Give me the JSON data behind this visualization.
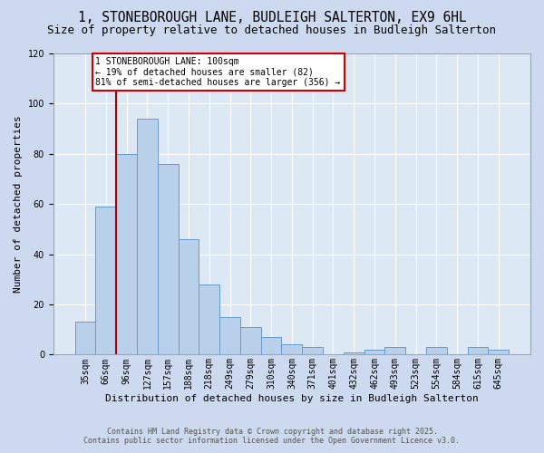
{
  "title": "1, STONEBOROUGH LANE, BUDLEIGH SALTERTON, EX9 6HL",
  "subtitle": "Size of property relative to detached houses in Budleigh Salterton",
  "xlabel": "Distribution of detached houses by size in Budleigh Salterton",
  "ylabel": "Number of detached properties",
  "categories": [
    "35sqm",
    "66sqm",
    "96sqm",
    "127sqm",
    "157sqm",
    "188sqm",
    "218sqm",
    "249sqm",
    "279sqm",
    "310sqm",
    "340sqm",
    "371sqm",
    "401sqm",
    "432sqm",
    "462sqm",
    "493sqm",
    "523sqm",
    "554sqm",
    "584sqm",
    "615sqm",
    "645sqm"
  ],
  "values": [
    13,
    59,
    80,
    94,
    76,
    46,
    28,
    15,
    11,
    7,
    4,
    3,
    0,
    1,
    2,
    3,
    0,
    3,
    0,
    3,
    2
  ],
  "bar_color": "#b8d0ea",
  "bar_edge_color": "#6699cc",
  "bg_color": "#dde8f5",
  "grid_color": "#ffffff",
  "vline_x_idx": 2,
  "vline_color": "#aa0000",
  "ann_line1": "1 STONEBOROUGH LANE: 100sqm",
  "ann_line2": "← 19% of detached houses are smaller (82)",
  "ann_line3": "81% of semi-detached houses are larger (356) →",
  "ann_edge_color": "#cc0000",
  "footnote_line1": "Contains HM Land Registry data © Crown copyright and database right 2025.",
  "footnote_line2": "Contains public sector information licensed under the Open Government Licence v3.0.",
  "ylim_max": 120,
  "title_fontsize": 10.5,
  "subtitle_fontsize": 9,
  "ylabel_fontsize": 8,
  "xlabel_fontsize": 8,
  "tick_fontsize": 7,
  "ann_fontsize": 7,
  "footnote_fontsize": 6
}
